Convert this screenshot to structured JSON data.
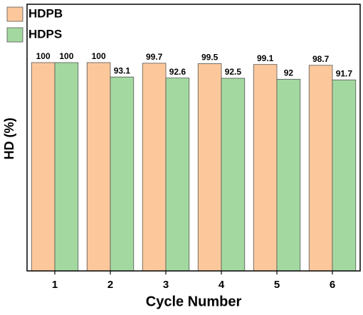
{
  "chart_data": {
    "type": "bar",
    "xlabel": "Cycle Number",
    "ylabel": "HD (%)",
    "categories": [
      "1",
      "2",
      "3",
      "4",
      "5",
      "6"
    ],
    "series": [
      {
        "name": "HDPB",
        "color": "#fcc89b",
        "values": [
          100,
          100,
          99.7,
          99.5,
          99.1,
          98.7
        ]
      },
      {
        "name": "HDPS",
        "color": "#a3d9a0",
        "values": [
          100,
          93.1,
          92.6,
          92.5,
          92,
          91.7
        ]
      }
    ],
    "ylim": [
      0,
      128
    ],
    "legend": "upper-left"
  }
}
